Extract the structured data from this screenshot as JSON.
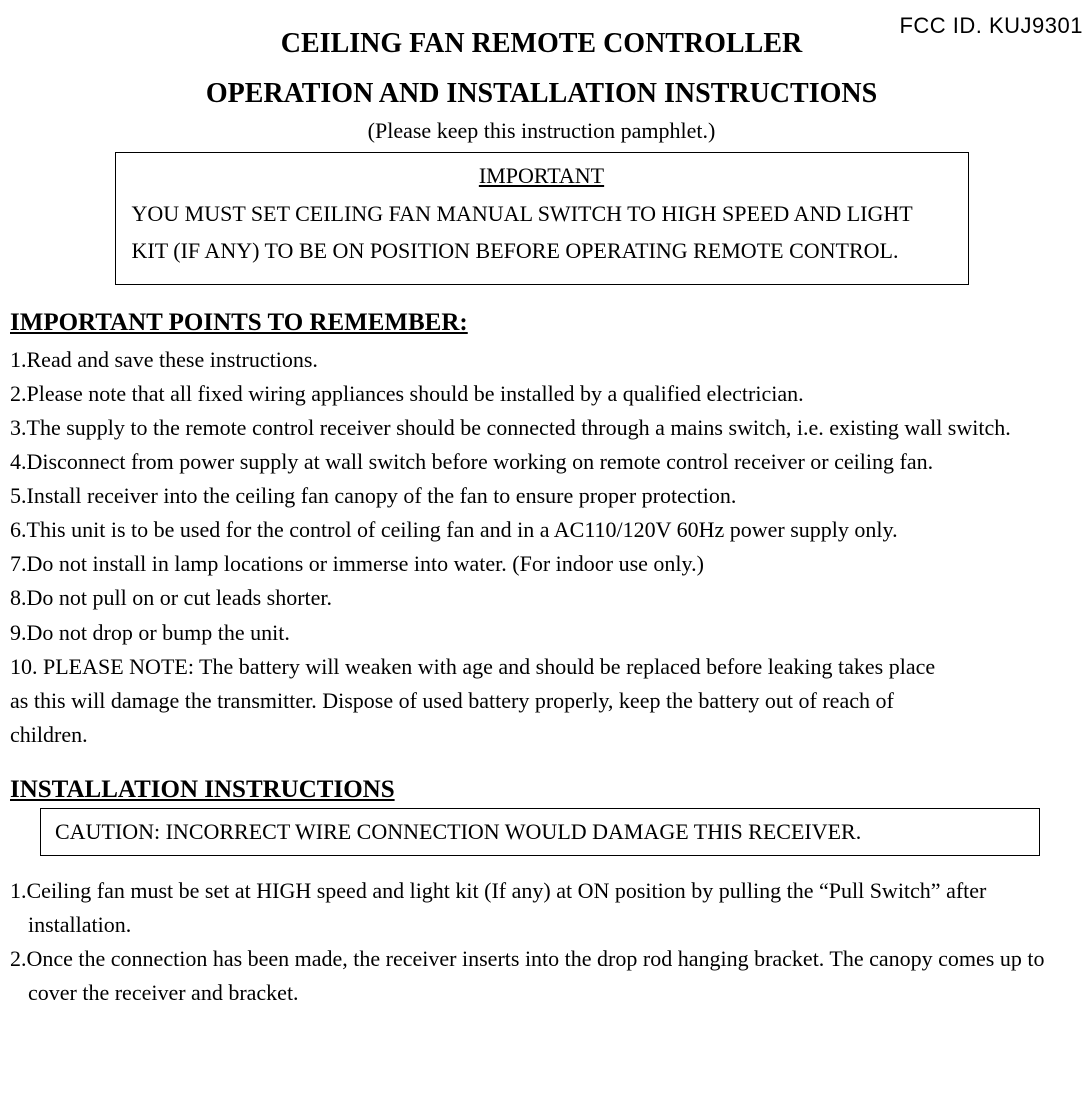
{
  "fcc_id": "FCC ID. KUJ9301",
  "title_line1": "CEILING FAN REMOTE CONTROLLER",
  "title_line2": "OPERATION AND INSTALLATION INSTRUCTIONS",
  "subtitle": "(Please keep this instruction pamphlet.)",
  "important_box": {
    "heading": "IMPORTANT",
    "body": "YOU MUST SET CEILING FAN MANUAL SWITCH TO HIGH SPEED AND LIGHT KIT (IF ANY) TO BE ON POSITION BEFORE OPERATING REMOTE CONTROL."
  },
  "points_heading": "IMPORTANT POINTS TO REMEMBER:",
  "points": [
    "1.Read and save these instructions.",
    "2.Please note that all fixed wiring appliances should be installed by a qualified electrician.",
    "3.The supply to the remote control receiver should be connected through a mains switch, i.e. existing wall switch.",
    "4.Disconnect from power supply at wall switch before working on remote control receiver or ceiling fan.",
    "5.Install receiver into the ceiling fan canopy of the fan to ensure proper protection.",
    "6.This unit is to be used for the control of ceiling fan and in a AC110/120V 60Hz power supply only.",
    "7.Do not install in lamp locations or immerse into water. (For indoor use only.)",
    "8.Do not pull on or cut leads shorter.",
    "9.Do not drop or bump the unit."
  ],
  "point10_lead": "10.   PLEASE NOTE: The battery will weaken with age and should be replaced before leaking takes place",
  "point10_line2": "as this will damage the transmitter. Dispose of used battery properly, keep the battery out of reach of",
  "point10_line3": "children.",
  "install_heading": "INSTALLATION INSTRUCTIONS",
  "caution": "CAUTION: INCORRECT WIRE CONNECTION WOULD DAMAGE THIS RECEIVER.",
  "install_items": [
    "1.Ceiling fan must be set at HIGH speed and light kit (If any) at ON position by pulling the “Pull Switch” after installation.",
    "2.Once the connection has been made, the receiver inserts into the drop rod hanging bracket. The canopy comes up to cover the receiver and bracket."
  ],
  "colors": {
    "text": "#000000",
    "background": "#ffffff",
    "border": "#000000"
  },
  "fonts": {
    "body_family": "Times New Roman",
    "fcc_family": "Arial",
    "title_size_pt": 21,
    "body_size_pt": 16
  }
}
